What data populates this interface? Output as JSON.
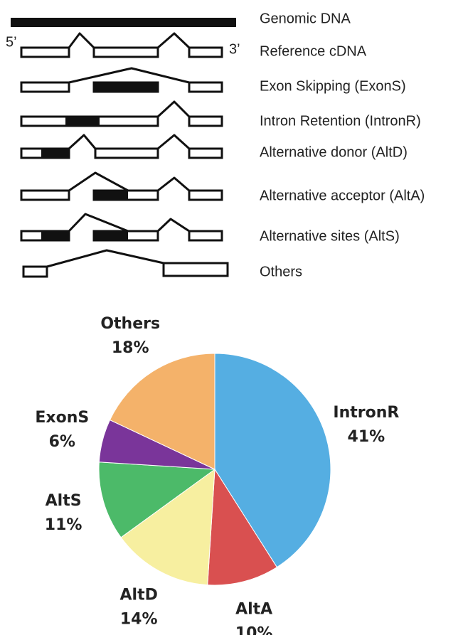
{
  "diagram": {
    "labels": [
      "Genomic DNA",
      "Reference cDNA",
      "Exon Skipping (ExonS)",
      "Intron Retention (IntronR)",
      "Alternative donor (AltD)",
      "Alternative acceptor (AltA)",
      "Alternative sites (AltS)",
      "Others"
    ],
    "five_prime": "5’",
    "three_prime": "3’"
  },
  "chart_data": {
    "type": "pie",
    "categories": [
      "IntronR",
      "AltA",
      "AltD",
      "AltS",
      "ExonS",
      "Others"
    ],
    "values": [
      41,
      10,
      14,
      11,
      6,
      18
    ],
    "value_labels": [
      "41%",
      "10%",
      "14%",
      "11%",
      "6%",
      "18%"
    ],
    "colors": [
      "#55aee2",
      "#d95050",
      "#f7efa0",
      "#4cba69",
      "#7a359a",
      "#f4b26a"
    ]
  }
}
